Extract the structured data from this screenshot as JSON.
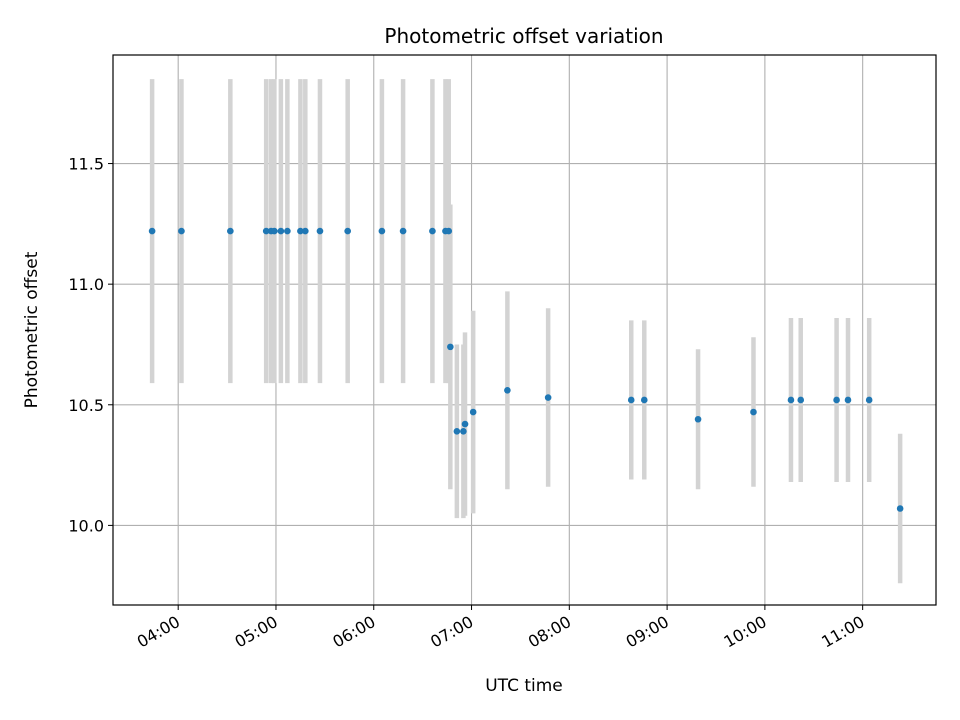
{
  "chart_data": {
    "type": "scatter",
    "title": "Photometric offset variation",
    "xlabel": "UTC time",
    "ylabel": "Photometric offset",
    "x_unit": "UTC time (HH:MM)",
    "xlim": [
      "03:20",
      "11:45"
    ],
    "ylim": [
      9.67,
      11.95
    ],
    "xticks": [
      "04:00",
      "05:00",
      "06:00",
      "07:00",
      "08:00",
      "09:00",
      "10:00",
      "11:00"
    ],
    "yticks": [
      10.0,
      10.5,
      11.0,
      11.5
    ],
    "ytick_labels": [
      "10.0",
      "10.5",
      "11.0",
      "11.5"
    ],
    "grid": true,
    "marker_color": "#1f77b4",
    "errorbar_color": "#d3d3d3",
    "points": [
      {
        "x": "03:44",
        "y": 11.22,
        "yerr": 0.63
      },
      {
        "x": "04:02",
        "y": 11.22,
        "yerr": 0.63
      },
      {
        "x": "04:32",
        "y": 11.22,
        "yerr": 0.63
      },
      {
        "x": "04:54",
        "y": 11.22,
        "yerr": 0.63
      },
      {
        "x": "04:57",
        "y": 11.22,
        "yerr": 0.63
      },
      {
        "x": "04:59",
        "y": 11.22,
        "yerr": 0.63
      },
      {
        "x": "05:03",
        "y": 11.22,
        "yerr": 0.63
      },
      {
        "x": "05:07",
        "y": 11.22,
        "yerr": 0.63
      },
      {
        "x": "05:15",
        "y": 11.22,
        "yerr": 0.63
      },
      {
        "x": "05:18",
        "y": 11.22,
        "yerr": 0.63
      },
      {
        "x": "05:27",
        "y": 11.22,
        "yerr": 0.63
      },
      {
        "x": "05:44",
        "y": 11.22,
        "yerr": 0.63
      },
      {
        "x": "06:05",
        "y": 11.22,
        "yerr": 0.63
      },
      {
        "x": "06:18",
        "y": 11.22,
        "yerr": 0.63
      },
      {
        "x": "06:36",
        "y": 11.22,
        "yerr": 0.63
      },
      {
        "x": "06:44",
        "y": 11.22,
        "yerr": 0.63
      },
      {
        "x": "06:46",
        "y": 11.22,
        "yerr": 0.63
      },
      {
        "x": "06:47",
        "y": 10.74,
        "yerr": 0.59
      },
      {
        "x": "06:51",
        "y": 10.39,
        "yerr": 0.36
      },
      {
        "x": "06:55",
        "y": 10.39,
        "yerr": 0.36
      },
      {
        "x": "06:56",
        "y": 10.42,
        "yerr": 0.38
      },
      {
        "x": "07:01",
        "y": 10.47,
        "yerr": 0.42
      },
      {
        "x": "07:22",
        "y": 10.56,
        "yerr": 0.41
      },
      {
        "x": "07:47",
        "y": 10.53,
        "yerr": 0.37
      },
      {
        "x": "08:38",
        "y": 10.52,
        "yerr": 0.33
      },
      {
        "x": "08:46",
        "y": 10.52,
        "yerr": 0.33
      },
      {
        "x": "09:19",
        "y": 10.44,
        "yerr": 0.29
      },
      {
        "x": "09:53",
        "y": 10.47,
        "yerr": 0.31
      },
      {
        "x": "10:16",
        "y": 10.52,
        "yerr": 0.34
      },
      {
        "x": "10:22",
        "y": 10.52,
        "yerr": 0.34
      },
      {
        "x": "10:44",
        "y": 10.52,
        "yerr": 0.34
      },
      {
        "x": "10:51",
        "y": 10.52,
        "yerr": 0.34
      },
      {
        "x": "11:04",
        "y": 10.52,
        "yerr": 0.34
      },
      {
        "x": "11:23",
        "y": 10.07,
        "yerr": 0.31
      }
    ]
  }
}
